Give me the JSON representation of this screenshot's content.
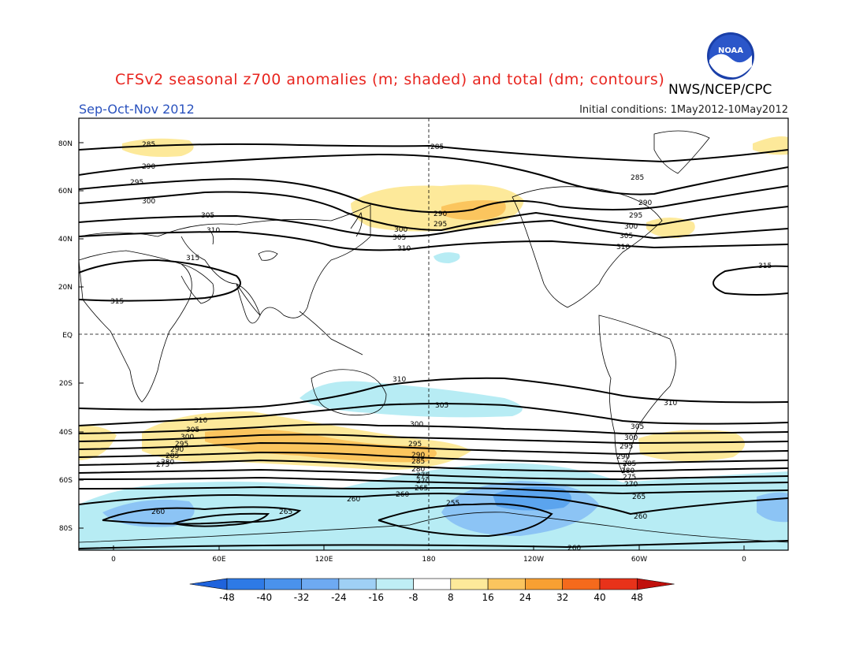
{
  "header": {
    "title": "CFSv2 seasonal z700 anomalies (m; shaded) and total (dm; contours)",
    "agency": "NWS/NCEP/CPC",
    "season": "Sep-Oct-Nov 2012",
    "initial_conditions": "Initial conditions: 1May2012-10May2012",
    "logo_text": "NOAA"
  },
  "map": {
    "projection": "cylindrical equidistant, Pacific-centered",
    "lat_labels": [
      "80N",
      "60N",
      "40N",
      "20N",
      "EQ",
      "20S",
      "40S",
      "60S",
      "80S"
    ],
    "lon_labels": [
      "0",
      "60E",
      "120E",
      "180",
      "120W",
      "60W",
      "0"
    ]
  },
  "colors": {
    "title": "#e8251f",
    "season": "#2a52be",
    "positive_8_16": "#fde99a",
    "positive_16_24": "#fbc55e",
    "negative_8_16": "#b7ecf4",
    "negative_16_24": "#8cc4f5",
    "negative_24_32": "#5ba4ee"
  },
  "colorbar": {
    "labels": [
      "-48",
      "-40",
      "-32",
      "-24",
      "-16",
      "-8",
      "8",
      "16",
      "24",
      "32",
      "40",
      "48"
    ],
    "colors": [
      "#1f63dc",
      "#2e7ae6",
      "#4a92ec",
      "#6eaaf2",
      "#9fd0f5",
      "#bfeef5",
      "#ffffff",
      "#fde99a",
      "#fbc55e",
      "#f8a032",
      "#f56a1c",
      "#e8321a",
      "#c0100c"
    ]
  },
  "contour_labels": {
    "north": [
      "285",
      "290",
      "295",
      "300",
      "305",
      "310",
      "315"
    ],
    "south": [
      "310",
      "305",
      "300",
      "295",
      "290",
      "285",
      "280",
      "275",
      "270",
      "265",
      "260",
      "255"
    ]
  }
}
